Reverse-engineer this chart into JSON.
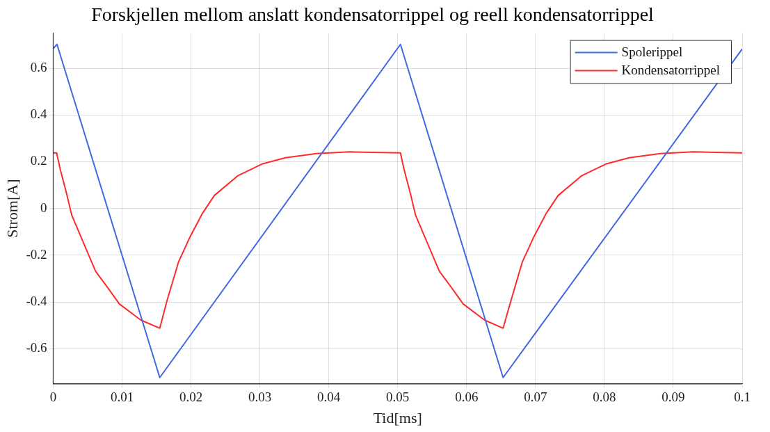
{
  "chart_data": {
    "type": "line",
    "title": "Forskjellen mellom anslatt kondensatorrippel og reell kondensatorrippel",
    "xlabel": "Tid[ms]",
    "ylabel": "Strom[A]",
    "xlim": [
      0,
      0.1
    ],
    "xticks": [
      0,
      0.01,
      0.02,
      0.03,
      0.04,
      0.05,
      0.06,
      0.07,
      0.08,
      0.09,
      0.1
    ],
    "ylim": [
      -0.75,
      0.75
    ],
    "yticks": [
      -0.6,
      -0.4,
      -0.2,
      0,
      0.2,
      0.4,
      0.6
    ],
    "grid": true,
    "legend": "top right",
    "marker": "none",
    "line_style": "solid",
    "series": [
      {
        "name": "Spolerippel",
        "color": "#4169e1",
        "x": [
          0,
          0.00055,
          0.01547,
          0.0504,
          0.0653,
          0.1
        ],
        "values": [
          0.684,
          0.702,
          -0.723,
          0.702,
          -0.723,
          0.682
        ]
      },
      {
        "name": "Kondensatorrippel",
        "color": "#ff2a2a",
        "x": [
          0,
          0.0005,
          0.001,
          0.00188,
          0.0027,
          0.00443,
          0.00615,
          0.0079,
          0.0096,
          0.0127,
          0.01547,
          0.01648,
          0.0182,
          0.0199,
          0.0217,
          0.0234,
          0.0268,
          0.0303,
          0.0337,
          0.0382,
          0.043,
          0.0504,
          0.0509,
          0.05178,
          0.0526,
          0.05433,
          0.05605,
          0.0578,
          0.0595,
          0.0626,
          0.0653,
          0.0664,
          0.0681,
          0.0698,
          0.0716,
          0.0733,
          0.0767,
          0.0802,
          0.0836,
          0.0881,
          0.0929,
          0.1
        ],
        "values": [
          0.238,
          0.238,
          0.17,
          0.071,
          -0.029,
          -0.149,
          -0.268,
          -0.338,
          -0.408,
          -0.477,
          -0.512,
          -0.398,
          -0.228,
          -0.119,
          -0.019,
          0.056,
          0.14,
          0.19,
          0.217,
          0.235,
          0.242,
          0.238,
          0.17,
          0.071,
          -0.029,
          -0.149,
          -0.268,
          -0.338,
          -0.408,
          -0.477,
          -0.512,
          -0.398,
          -0.228,
          -0.119,
          -0.019,
          0.056,
          0.14,
          0.19,
          0.217,
          0.235,
          0.242,
          0.238
        ]
      }
    ]
  }
}
